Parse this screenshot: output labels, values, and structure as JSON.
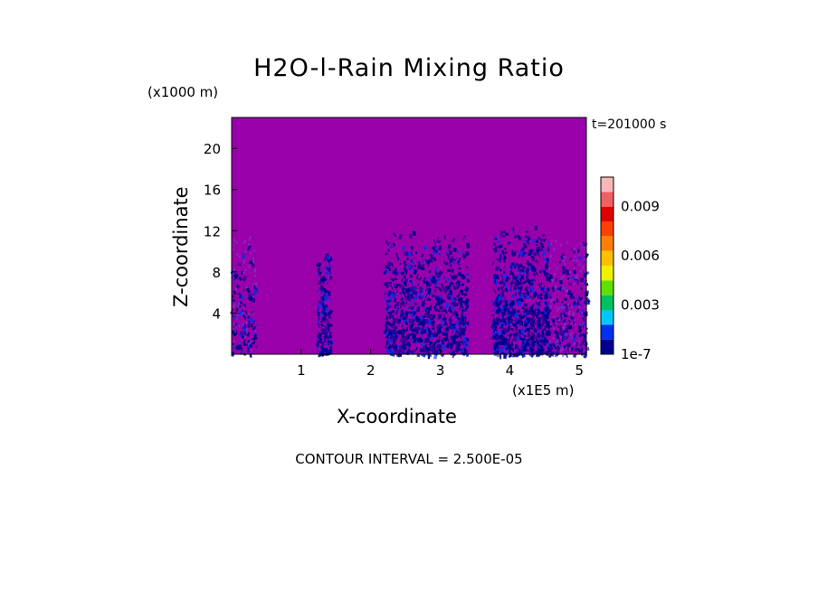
{
  "chart_data": {
    "type": "heatmap",
    "title": "H2O-l-Rain Mixing Ratio",
    "xlabel": "X-coordinate",
    "ylabel": "Z-coordinate",
    "x_scale_label": "(x1E5 m)",
    "y_scale_label": "(x1000 m)",
    "timestamp": "t=201000 s",
    "contour_interval": "CONTOUR INTERVAL = 2.500E-05",
    "xlim": [
      0,
      5.1
    ],
    "ylim": [
      0,
      23
    ],
    "x_ticks": [
      "1",
      "2",
      "3",
      "4",
      "5"
    ],
    "x_tick_values": [
      1,
      2,
      3,
      4,
      5
    ],
    "y_ticks": [
      "4",
      "8",
      "12",
      "16",
      "20"
    ],
    "y_tick_values": [
      4,
      8,
      12,
      16,
      20
    ],
    "background_color": "#9900aa",
    "colorbar": {
      "colors": [
        "#00008e",
        "#0030f0",
        "#00c8ff",
        "#00c060",
        "#60e000",
        "#f0f000",
        "#ffc000",
        "#ff8000",
        "#ff4000",
        "#e00000",
        "#f06060",
        "#f8b8b8"
      ],
      "tick_labels": [
        "1e-7",
        "0.003",
        "0.006",
        "0.009"
      ],
      "tick_values": [
        0,
        0.003,
        0.006,
        0.009
      ],
      "vmax": 0.0108
    },
    "rain_regions": [
      {
        "x_start": 0.0,
        "x_end": 0.35,
        "top": 11.5,
        "density": 0.25
      },
      {
        "x_start": 1.22,
        "x_end": 1.42,
        "top": 10.5,
        "density": 0.7
      },
      {
        "x_start": 2.2,
        "x_end": 3.38,
        "top": 12.2,
        "density": 0.55
      },
      {
        "x_start": 3.75,
        "x_end": 4.55,
        "top": 12.6,
        "density": 0.75
      },
      {
        "x_start": 4.55,
        "x_end": 5.1,
        "top": 11.3,
        "density": 0.3
      }
    ]
  }
}
